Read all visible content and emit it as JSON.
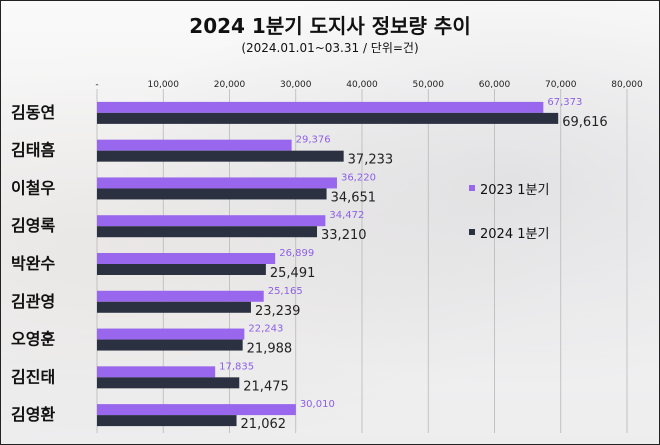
{
  "chart_data": {
    "type": "bar",
    "orientation": "horizontal",
    "title": "2024 1분기 도지사 정보량 추이",
    "subtitle": "(2024.01.01~03.31  / 단위=건)",
    "categories": [
      "김동연",
      "김태흠",
      "이철우",
      "김영록",
      "박완수",
      "김관영",
      "오영훈",
      "김진태",
      "김영환"
    ],
    "series": [
      {
        "name": "2023 1분기",
        "color": "#9966ee",
        "values": [
          67373,
          29376,
          36220,
          34472,
          26899,
          25165,
          22243,
          17835,
          30010
        ],
        "labels": [
          "67,373",
          "29,376",
          "36,220",
          "34,472",
          "26,899",
          "25,165",
          "22,243",
          "17,835",
          "30,010"
        ]
      },
      {
        "name": "2024 1분기",
        "color": "#2c3142",
        "values": [
          69616,
          37233,
          34651,
          33210,
          25491,
          23239,
          21988,
          21475,
          21062
        ],
        "labels": [
          "69,616",
          "37,233",
          "34,651",
          "33,210",
          "25,491",
          "23,239",
          "21,988",
          "21,475",
          "21,062"
        ]
      }
    ],
    "xlim": [
      0,
      80000
    ],
    "xticks": [
      "-",
      "10,000",
      "20,000",
      "30,000",
      "40,000",
      "50,000",
      "60,000",
      "70,000",
      "80,000"
    ],
    "grid": true,
    "legend": "right"
  }
}
